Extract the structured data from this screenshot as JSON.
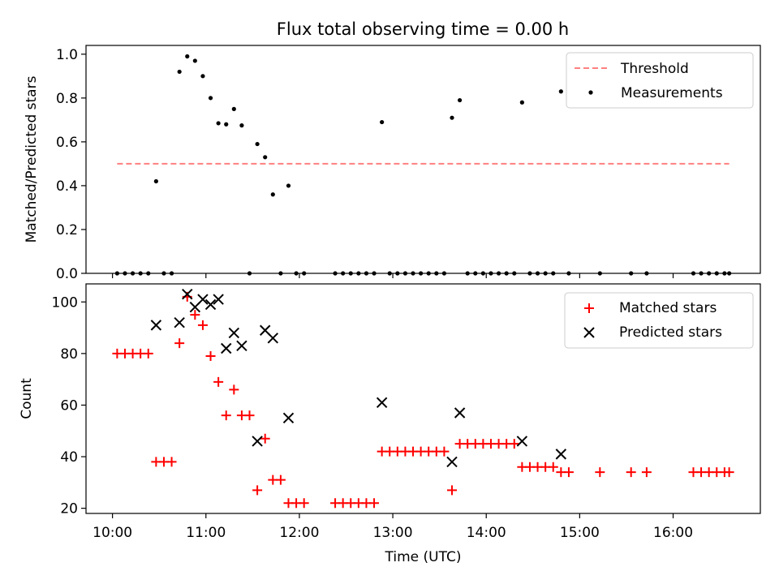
{
  "title": "Flux total observing time = 0.00 h",
  "chart_data": [
    {
      "type": "scatter",
      "xlabel": "",
      "ylabel": "Matched/Predicted stars",
      "xlim": [
        "09:43",
        "16:56"
      ],
      "ylim": [
        0.0,
        1.04
      ],
      "yticks": [
        0.0,
        0.2,
        0.4,
        0.6,
        0.8,
        1.0
      ],
      "ytick_labels": [
        "0.0",
        "0.2",
        "0.4",
        "0.6",
        "0.8",
        "1.0"
      ],
      "legend_position": "top-right",
      "threshold": {
        "name": "Threshold",
        "value": 0.5,
        "x_range": [
          "10:03",
          "16:36"
        ],
        "color": "#ff8080"
      },
      "series": [
        {
          "name": "Measurements",
          "color": "#000000",
          "points": [
            [
              "10:03",
              0
            ],
            [
              "10:08",
              0
            ],
            [
              "10:13",
              0
            ],
            [
              "10:18",
              0
            ],
            [
              "10:23",
              0
            ],
            [
              "10:28",
              0.42
            ],
            [
              "10:33",
              0
            ],
            [
              "10:38",
              0
            ],
            [
              "10:43",
              0.92
            ],
            [
              "10:48",
              0.99
            ],
            [
              "10:53",
              0.97
            ],
            [
              "10:58",
              0.9
            ],
            [
              "11:03",
              0.8
            ],
            [
              "11:08",
              0.685
            ],
            [
              "11:13",
              0.68
            ],
            [
              "11:18",
              0.75
            ],
            [
              "11:23",
              0.675
            ],
            [
              "11:28",
              0
            ],
            [
              "11:33",
              0.59
            ],
            [
              "11:38",
              0.53
            ],
            [
              "11:43",
              0.36
            ],
            [
              "11:48",
              0
            ],
            [
              "11:53",
              0.4
            ],
            [
              "11:58",
              0
            ],
            [
              "12:03",
              0
            ],
            [
              "12:23",
              0
            ],
            [
              "12:28",
              0
            ],
            [
              "12:33",
              0
            ],
            [
              "12:38",
              0
            ],
            [
              "12:43",
              0
            ],
            [
              "12:48",
              0
            ],
            [
              "12:53",
              0.69
            ],
            [
              "12:58",
              0
            ],
            [
              "13:03",
              0
            ],
            [
              "13:08",
              0
            ],
            [
              "13:13",
              0
            ],
            [
              "13:18",
              0
            ],
            [
              "13:23",
              0
            ],
            [
              "13:28",
              0
            ],
            [
              "13:33",
              0
            ],
            [
              "13:38",
              0.71
            ],
            [
              "13:43",
              0.79
            ],
            [
              "13:48",
              0
            ],
            [
              "13:53",
              0
            ],
            [
              "13:58",
              0
            ],
            [
              "14:03",
              0
            ],
            [
              "14:08",
              0
            ],
            [
              "14:13",
              0
            ],
            [
              "14:18",
              0
            ],
            [
              "14:23",
              0.78
            ],
            [
              "14:28",
              0
            ],
            [
              "14:33",
              0
            ],
            [
              "14:38",
              0
            ],
            [
              "14:43",
              0
            ],
            [
              "14:48",
              0.83
            ],
            [
              "14:53",
              0
            ],
            [
              "15:13",
              0
            ],
            [
              "15:33",
              0
            ],
            [
              "15:43",
              0
            ],
            [
              "16:13",
              0
            ],
            [
              "16:18",
              0
            ],
            [
              "16:23",
              0
            ],
            [
              "16:28",
              0
            ],
            [
              "16:33",
              0
            ],
            [
              "16:36",
              0
            ]
          ]
        }
      ]
    },
    {
      "type": "scatter",
      "xlabel": "Time (UTC)",
      "ylabel": "Count",
      "xlim": [
        "09:43",
        "16:56"
      ],
      "ylim": [
        18,
        107
      ],
      "yticks": [
        20,
        40,
        60,
        80,
        100
      ],
      "ytick_labels": [
        "20",
        "40",
        "60",
        "80",
        "100"
      ],
      "xticks": [
        "10:00",
        "11:00",
        "12:00",
        "13:00",
        "14:00",
        "15:00",
        "16:00"
      ],
      "xtick_labels": [
        "10:00",
        "11:00",
        "12:00",
        "13:00",
        "14:00",
        "15:00",
        "16:00"
      ],
      "legend_position": "top-right",
      "series": [
        {
          "name": "Matched stars",
          "color": "#ff0000",
          "marker": "plus",
          "points": [
            [
              "10:03",
              80
            ],
            [
              "10:08",
              80
            ],
            [
              "10:13",
              80
            ],
            [
              "10:18",
              80
            ],
            [
              "10:23",
              80
            ],
            [
              "10:28",
              38
            ],
            [
              "10:33",
              38
            ],
            [
              "10:38",
              38
            ],
            [
              "10:43",
              84
            ],
            [
              "10:48",
              102
            ],
            [
              "10:53",
              95
            ],
            [
              "10:58",
              91
            ],
            [
              "11:03",
              79
            ],
            [
              "11:08",
              69
            ],
            [
              "11:13",
              56
            ],
            [
              "11:18",
              66
            ],
            [
              "11:23",
              56
            ],
            [
              "11:28",
              56
            ],
            [
              "11:33",
              27
            ],
            [
              "11:38",
              47
            ],
            [
              "11:43",
              31
            ],
            [
              "11:48",
              31
            ],
            [
              "11:53",
              22
            ],
            [
              "11:58",
              22
            ],
            [
              "12:03",
              22
            ],
            [
              "12:23",
              22
            ],
            [
              "12:28",
              22
            ],
            [
              "12:33",
              22
            ],
            [
              "12:38",
              22
            ],
            [
              "12:43",
              22
            ],
            [
              "12:48",
              22
            ],
            [
              "12:53",
              42
            ],
            [
              "12:58",
              42
            ],
            [
              "13:03",
              42
            ],
            [
              "13:08",
              42
            ],
            [
              "13:13",
              42
            ],
            [
              "13:18",
              42
            ],
            [
              "13:23",
              42
            ],
            [
              "13:28",
              42
            ],
            [
              "13:33",
              42
            ],
            [
              "13:38",
              27
            ],
            [
              "13:43",
              45
            ],
            [
              "13:48",
              45
            ],
            [
              "13:53",
              45
            ],
            [
              "13:58",
              45
            ],
            [
              "14:03",
              45
            ],
            [
              "14:08",
              45
            ],
            [
              "14:13",
              45
            ],
            [
              "14:18",
              45
            ],
            [
              "14:23",
              36
            ],
            [
              "14:28",
              36
            ],
            [
              "14:33",
              36
            ],
            [
              "14:38",
              36
            ],
            [
              "14:43",
              36
            ],
            [
              "14:48",
              34
            ],
            [
              "14:53",
              34
            ],
            [
              "15:13",
              34
            ],
            [
              "15:33",
              34
            ],
            [
              "15:43",
              34
            ],
            [
              "16:13",
              34
            ],
            [
              "16:18",
              34
            ],
            [
              "16:23",
              34
            ],
            [
              "16:28",
              34
            ],
            [
              "16:33",
              34
            ],
            [
              "16:36",
              34
            ]
          ]
        },
        {
          "name": "Predicted stars",
          "color": "#000000",
          "marker": "x",
          "points": [
            [
              "10:28",
              91
            ],
            [
              "10:43",
              92
            ],
            [
              "10:48",
              103
            ],
            [
              "10:53",
              98
            ],
            [
              "10:58",
              101
            ],
            [
              "11:03",
              99
            ],
            [
              "11:08",
              101
            ],
            [
              "11:13",
              82
            ],
            [
              "11:18",
              88
            ],
            [
              "11:23",
              83
            ],
            [
              "11:33",
              46
            ],
            [
              "11:38",
              89
            ],
            [
              "11:43",
              86
            ],
            [
              "11:53",
              55
            ],
            [
              "12:53",
              61
            ],
            [
              "13:38",
              38
            ],
            [
              "13:43",
              57
            ],
            [
              "14:23",
              46
            ],
            [
              "14:48",
              41
            ]
          ]
        }
      ]
    }
  ]
}
